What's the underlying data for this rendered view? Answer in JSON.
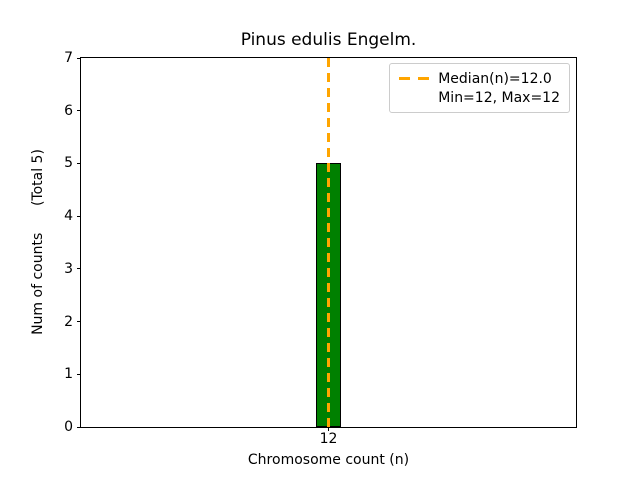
{
  "figure": {
    "title": "Pinus edulis Engelm.",
    "xlabel": "Chromosome count (n)",
    "ylabel": "Num of counts      (Total 5)"
  },
  "legend": {
    "position": "upper right",
    "entries": [
      {
        "label": "Median(n)=12.0",
        "marker": "orange-dashed-line"
      },
      {
        "label": "Min=12, Max=12",
        "marker": "none"
      }
    ]
  },
  "chart_data": {
    "type": "bar",
    "categories": [
      "12"
    ],
    "values": [
      5
    ],
    "title": "Pinus edulis Engelm.",
    "xlabel": "Chromosome count (n)",
    "ylabel": "Num of counts (Total 5)",
    "ylim": [
      0,
      7
    ],
    "yticks": [
      0,
      1,
      2,
      3,
      4,
      5,
      6,
      7
    ],
    "grid": false,
    "legend_position": "upper right",
    "annotations": {
      "total_counts": 5,
      "median_n": 12.0,
      "min_n": 12,
      "max_n": 12
    },
    "median_line": {
      "x": 12.0,
      "style": "dashed",
      "color": "#FFA500"
    }
  },
  "colors": {
    "bar_fill": "#008000",
    "bar_edge": "#000000",
    "median_line": "#FFA500",
    "axis": "#000000",
    "legend_border": "#cccccc",
    "background": "#ffffff"
  }
}
